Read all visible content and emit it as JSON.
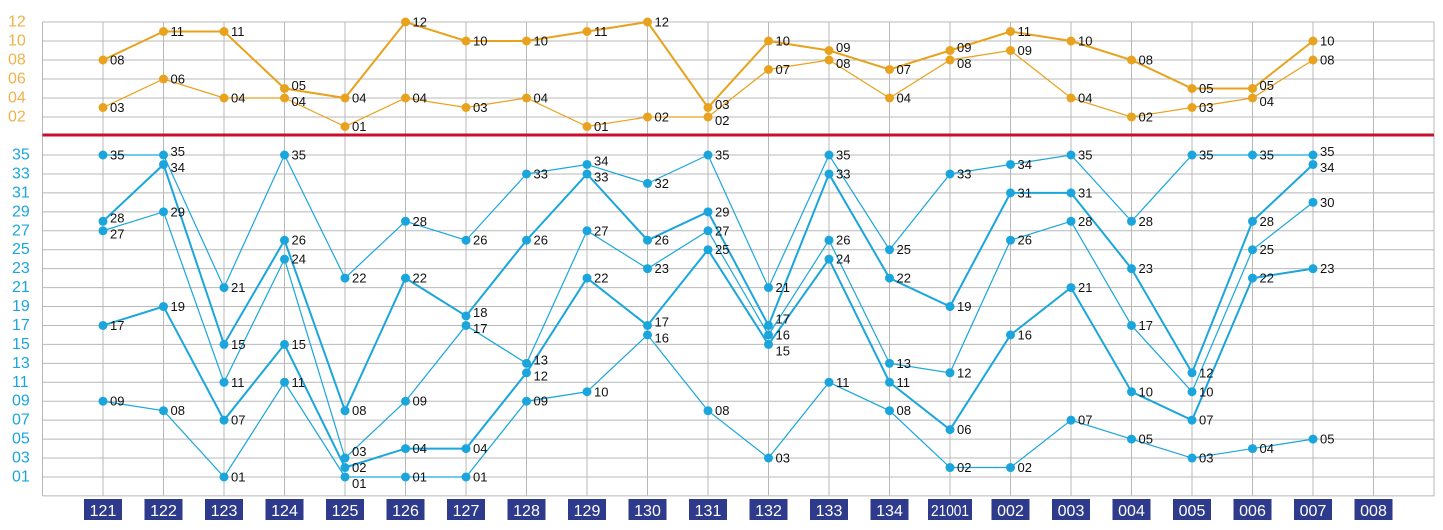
{
  "chart_data": [
    {
      "type": "line",
      "panel": "top",
      "color": "#e8a21e",
      "categories": [
        "121",
        "122",
        "123",
        "124",
        "125",
        "126",
        "127",
        "128",
        "129",
        "130",
        "131",
        "132",
        "133",
        "134",
        "21001",
        "002",
        "003",
        "004",
        "005",
        "006",
        "007",
        "008"
      ],
      "y_ticks": [
        "02",
        "04",
        "06",
        "08",
        "10",
        "12"
      ],
      "ylim": [
        0,
        12
      ],
      "grid": true,
      "series": [
        {
          "values": [
            3,
            6,
            4,
            4,
            1,
            4,
            3,
            4,
            1,
            2,
            2,
            7,
            8,
            4,
            8,
            9,
            4,
            2,
            3,
            4,
            8,
            null
          ]
        },
        {
          "values": [
            8,
            11,
            11,
            5,
            4,
            12,
            10,
            10,
            11,
            12,
            3,
            10,
            9,
            7,
            9,
            11,
            10,
            8,
            5,
            5,
            10,
            null
          ]
        }
      ]
    },
    {
      "type": "line",
      "panel": "bottom",
      "color": "#1aa6dd",
      "categories": [
        "121",
        "122",
        "123",
        "124",
        "125",
        "126",
        "127",
        "128",
        "129",
        "130",
        "131",
        "132",
        "133",
        "134",
        "21001",
        "002",
        "003",
        "004",
        "005",
        "006",
        "007",
        "008"
      ],
      "y_ticks": [
        "01",
        "03",
        "05",
        "07",
        "09",
        "11",
        "13",
        "15",
        "17",
        "19",
        "21",
        "23",
        "25",
        "27",
        "29",
        "31",
        "33",
        "35"
      ],
      "ylim": [
        0,
        36
      ],
      "grid": true,
      "series": [
        {
          "values": [
            9,
            8,
            1,
            11,
            1,
            1,
            1,
            9,
            10,
            16,
            8,
            3,
            11,
            8,
            2,
            2,
            7,
            5,
            3,
            4,
            5,
            null
          ]
        },
        {
          "values": [
            17,
            19,
            7,
            15,
            2,
            4,
            4,
            12,
            22,
            17,
            25,
            15,
            24,
            11,
            6,
            16,
            21,
            10,
            7,
            22,
            23,
            null
          ]
        },
        {
          "values": [
            27,
            29,
            11,
            24,
            3,
            9,
            17,
            13,
            27,
            23,
            27,
            16,
            26,
            13,
            12,
            26,
            28,
            17,
            10,
            25,
            30,
            null
          ]
        },
        {
          "values": [
            28,
            34,
            15,
            26,
            8,
            22,
            18,
            26,
            33,
            26,
            29,
            17,
            33,
            22,
            19,
            31,
            31,
            23,
            12,
            28,
            34,
            null
          ]
        },
        {
          "values": [
            35,
            35,
            21,
            35,
            22,
            28,
            26,
            33,
            34,
            32,
            35,
            21,
            35,
            25,
            33,
            34,
            35,
            28,
            35,
            35,
            35,
            null
          ]
        }
      ]
    }
  ],
  "divider_color": "#c8102e",
  "x_label_bg": "#2e3a8c"
}
